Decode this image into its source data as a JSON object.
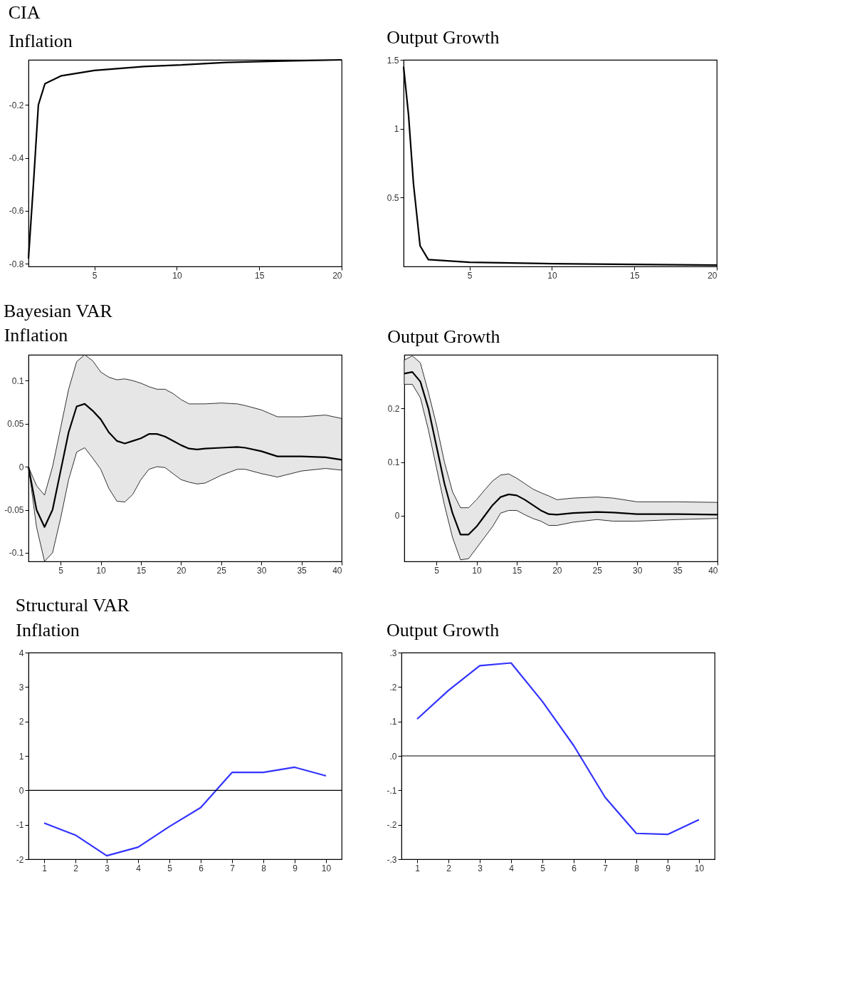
{
  "chart_data": [
    {
      "type": "line",
      "title": "Inflation",
      "annotations": [
        "CIA"
      ],
      "xlim": [
        1,
        20
      ],
      "xticks": [
        5,
        10,
        15,
        20
      ],
      "ylim": [
        -0.81,
        -0.03
      ],
      "yticks": [
        -0.2,
        -0.4,
        -0.6,
        -0.8
      ],
      "grid": false,
      "x": [
        1,
        1.3,
        1.6,
        2,
        3,
        5,
        8,
        10,
        13,
        16,
        20
      ],
      "series": [
        {
          "color": "#000000",
          "values": [
            -0.78,
            -0.5,
            -0.2,
            -0.12,
            -0.09,
            -0.07,
            -0.055,
            -0.05,
            -0.04,
            -0.035,
            -0.03
          ]
        }
      ]
    },
    {
      "type": "line",
      "title": "Output Growth",
      "xlim": [
        1,
        20
      ],
      "xticks": [
        5,
        10,
        15,
        20
      ],
      "ylim": [
        0,
        1.5
      ],
      "yticks": [
        1.5,
        1,
        0.5
      ],
      "grid": false,
      "x": [
        1,
        1.3,
        1.6,
        2,
        2.5,
        5,
        10,
        20
      ],
      "series": [
        {
          "color": "#000000",
          "values": [
            1.45,
            1.1,
            0.6,
            0.15,
            0.05,
            0.03,
            0.02,
            0.01
          ]
        }
      ]
    },
    {
      "type": "line",
      "title": "Inflation",
      "annotations": [
        "Bayesian VAR"
      ],
      "xlim": [
        1,
        40
      ],
      "xticks": [
        5,
        10,
        15,
        20,
        25,
        30,
        35,
        40
      ],
      "ylim": [
        -0.11,
        0.13
      ],
      "yticks": [
        0.1,
        0.05,
        0,
        -0.05,
        -0.1
      ],
      "grid": false,
      "x": [
        1,
        2,
        3,
        4,
        5,
        6,
        7,
        8,
        9,
        10,
        11,
        12,
        13,
        14,
        15,
        16,
        17,
        18,
        19,
        20,
        21,
        22,
        23,
        25,
        27,
        28,
        30,
        32,
        35,
        38,
        40
      ],
      "series": [
        {
          "color": "#000000",
          "values": [
            0,
            -0.05,
            -0.07,
            -0.05,
            -0.005,
            0.04,
            0.07,
            0.073,
            0.065,
            0.055,
            0.04,
            0.03,
            0.027,
            0.03,
            0.033,
            0.038,
            0.038,
            0.035,
            0.03,
            0.025,
            0.021,
            0.02,
            0.021,
            0.022,
            0.023,
            0.022,
            0.018,
            0.012,
            0.012,
            0.011,
            0.008
          ],
          "upper": [
            0,
            -0.022,
            -0.033,
            0,
            0.045,
            0.09,
            0.122,
            0.13,
            0.123,
            0.11,
            0.104,
            0.101,
            0.102,
            0.1,
            0.097,
            0.093,
            0.09,
            0.09,
            0.085,
            0.078,
            0.073,
            0.073,
            0.073,
            0.074,
            0.073,
            0.071,
            0.066,
            0.058,
            0.058,
            0.06,
            0.056
          ],
          "lower": [
            0,
            -0.07,
            -0.11,
            -0.1,
            -0.06,
            -0.015,
            0.017,
            0.022,
            0.01,
            -0.003,
            -0.025,
            -0.04,
            -0.041,
            -0.032,
            -0.015,
            -0.003,
            0,
            -0.001,
            -0.008,
            -0.015,
            -0.018,
            -0.02,
            -0.019,
            -0.01,
            -0.003,
            -0.003,
            -0.008,
            -0.012,
            -0.005,
            -0.002,
            -0.004
          ]
        }
      ]
    },
    {
      "type": "line",
      "title": "Output Growth",
      "xlim": [
        1,
        40
      ],
      "xticks": [
        5,
        10,
        15,
        20,
        25,
        30,
        35,
        40
      ],
      "ylim": [
        -0.085,
        0.3
      ],
      "yticks": [
        0.2,
        0.1,
        0
      ],
      "grid": false,
      "x": [
        1,
        2,
        3,
        4,
        5,
        6,
        7,
        8,
        9,
        10,
        11,
        12,
        13,
        14,
        15,
        16,
        17,
        18,
        19,
        20,
        22,
        25,
        27,
        30,
        35,
        40
      ],
      "series": [
        {
          "color": "#000000",
          "values": [
            0.265,
            0.268,
            0.25,
            0.2,
            0.13,
            0.06,
            0.005,
            -0.035,
            -0.035,
            -0.02,
            0,
            0.02,
            0.035,
            0.04,
            0.038,
            0.03,
            0.02,
            0.01,
            0.003,
            0.002,
            0.005,
            0.007,
            0.006,
            0.003,
            0.003,
            0.002
          ],
          "upper": [
            0.29,
            0.298,
            0.285,
            0.23,
            0.17,
            0.1,
            0.045,
            0.015,
            0.015,
            0.03,
            0.048,
            0.065,
            0.076,
            0.078,
            0.07,
            0.06,
            0.05,
            0.043,
            0.037,
            0.03,
            0.033,
            0.035,
            0.033,
            0.026,
            0.026,
            0.025
          ],
          "lower": [
            0.245,
            0.245,
            0.22,
            0.16,
            0.09,
            0.02,
            -0.04,
            -0.082,
            -0.08,
            -0.06,
            -0.04,
            -0.02,
            0.005,
            0.01,
            0.01,
            0.002,
            -0.005,
            -0.01,
            -0.018,
            -0.018,
            -0.012,
            -0.007,
            -0.01,
            -0.01,
            -0.007,
            -0.005
          ]
        }
      ]
    },
    {
      "type": "line",
      "title": "Inflation",
      "annotations": [
        "Structural VAR"
      ],
      "categories": [
        "1",
        "2",
        "3",
        "4",
        "5",
        "6",
        "7",
        "8",
        "9",
        "10"
      ],
      "ylim": [
        -2,
        4
      ],
      "yticks": [
        4,
        3,
        2,
        1,
        0,
        -1,
        -2
      ],
      "grid": false,
      "ref_lines": [
        {
          "axis": "y",
          "value": 0,
          "color": "#000000"
        }
      ],
      "series": [
        {
          "color": "#3333ff",
          "values": [
            -0.95,
            -1.3,
            -1.9,
            -1.65,
            -1.05,
            -0.5,
            0.52,
            0.52,
            0.67,
            0.42
          ]
        }
      ]
    },
    {
      "type": "line",
      "title": "Output Growth",
      "categories": [
        "1",
        "2",
        "3",
        "4",
        "5",
        "6",
        "7",
        "8",
        "9",
        "10"
      ],
      "ylim": [
        -0.3,
        0.3
      ],
      "grid": false,
      "yticks": [
        {
          "value": 0.3,
          "label": ".3"
        },
        {
          "value": 0.2,
          "label": ".2"
        },
        {
          "value": 0.1,
          "label": ".1"
        },
        {
          "value": 0,
          "label": ".0"
        },
        {
          "value": -0.1,
          "label": "-.1"
        },
        {
          "value": -0.2,
          "label": "-.2"
        },
        {
          "value": -0.3,
          "label": "-.3"
        }
      ],
      "ref_lines": [
        {
          "axis": "y",
          "value": 0,
          "color": "#000000"
        }
      ],
      "series": [
        {
          "color": "#3333ff",
          "values": [
            0.107,
            0.19,
            0.262,
            0.27,
            0.158,
            0.03,
            -0.12,
            -0.225,
            -0.228,
            -0.185
          ]
        }
      ]
    }
  ]
}
